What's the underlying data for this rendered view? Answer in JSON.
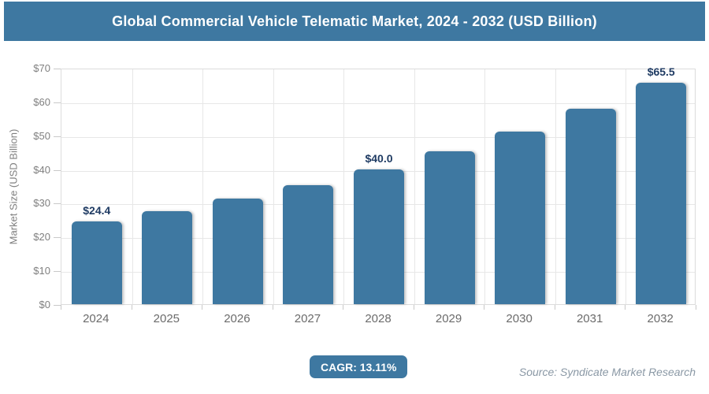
{
  "header": {
    "title": "Global Commercial Vehicle Telematic Market, 2024 - 2032 (USD Billion)"
  },
  "chart_data": {
    "type": "bar",
    "title": "Global Commercial Vehicle Telematic Market, 2024 - 2032 (USD Billion)",
    "categories": [
      "2024",
      "2025",
      "2026",
      "2027",
      "2028",
      "2029",
      "2030",
      "2031",
      "2032"
    ],
    "values": [
      24.4,
      27.6,
      31.2,
      35.3,
      40.0,
      45.2,
      51.2,
      57.9,
      65.5
    ],
    "bar_labels": [
      "$24.4",
      "",
      "",
      "",
      "$40.0",
      "",
      "",
      "",
      "$65.5"
    ],
    "xlabel": "",
    "ylabel": "Market Size (USD Billion)",
    "ylim": [
      0,
      70
    ],
    "ytick_step": 10,
    "ytick_prefix": "$",
    "grid": true,
    "legend": "none",
    "bar_color": "#3e78a1",
    "value_label_color": "#1f3b63"
  },
  "footer": {
    "cagr_label": "CAGR: 13.11%",
    "source": "Source: Syndicate Market Research"
  },
  "colors": {
    "accent": "#3e78a1",
    "axis_text": "#7f7f7f",
    "x_axis_text": "#6b6b6b",
    "gridline": "#e7e7e7",
    "source_text": "#8a98a5",
    "title_text": "#ffffff"
  }
}
